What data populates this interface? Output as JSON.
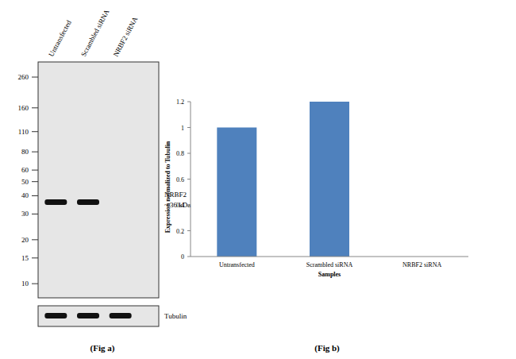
{
  "blot": {
    "lanes": [
      "Untransfected",
      "Scrambled siRNA",
      "NRBF2 siRNA"
    ],
    "kda_lim": [
      8,
      330
    ],
    "ladder": [
      260,
      160,
      110,
      80,
      60,
      50,
      40,
      30,
      20,
      15,
      10
    ],
    "bands": [
      {
        "name": "NRBF2",
        "kda": {
          "value": 36,
          "label": "~ 36 kDa"
        },
        "present": [
          true,
          true,
          false
        ]
      }
    ],
    "loading_control": {
      "name": "Tubulin",
      "present": [
        true,
        true,
        true
      ]
    },
    "caption": "(Fig a)"
  },
  "chart_data": {
    "type": "bar",
    "categories": [
      "Untransfected",
      "Scrambled siRNA",
      "NRBF2 siRNA"
    ],
    "values": [
      1,
      1.2,
      0
    ],
    "color": "#4f81bd",
    "x_label": "Samples",
    "y_label": "Expression  normalized to Tubulin",
    "ylim": [
      0,
      1.2
    ],
    "yticks": [
      0,
      0.2,
      0.4,
      0.6,
      0.8,
      1,
      1.2
    ],
    "grid": false,
    "caption": "(Fig b)"
  }
}
